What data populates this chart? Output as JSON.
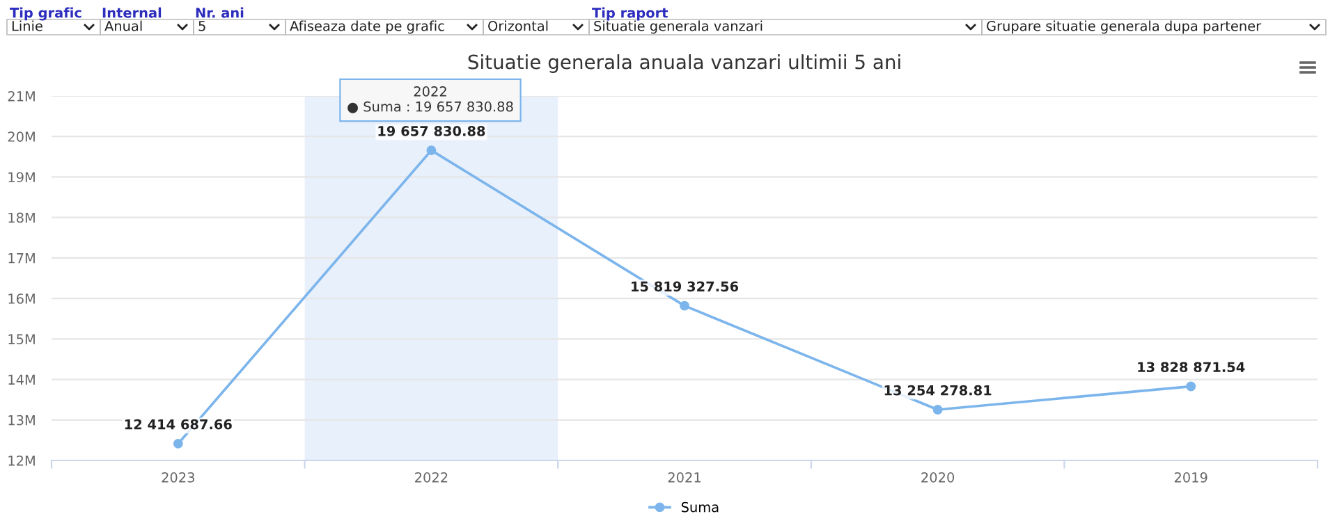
{
  "chart_data": {
    "type": "line",
    "title": "Situatie generala anuala vanzari ultimii 5 ani",
    "categories": [
      "2023",
      "2022",
      "2021",
      "2020",
      "2019"
    ],
    "series": [
      {
        "name": "Suma",
        "color": "#7cb5ec",
        "values": [
          12414687.66,
          19657830.88,
          15819327.56,
          13254278.81,
          13828871.54
        ],
        "value_labels": [
          "12 414 687.66",
          "19 657 830.88",
          "15 819 327.56",
          "13 254 278.81",
          "13 828 871.54"
        ]
      }
    ],
    "ylim": [
      12000000,
      21000000
    ],
    "yticks": [
      {
        "value": 12000000,
        "label": "12M"
      },
      {
        "value": 13000000,
        "label": "13M"
      },
      {
        "value": 14000000,
        "label": "14M"
      },
      {
        "value": 15000000,
        "label": "15M"
      },
      {
        "value": 16000000,
        "label": "16M"
      },
      {
        "value": 17000000,
        "label": "17M"
      },
      {
        "value": 18000000,
        "label": "18M"
      },
      {
        "value": 19000000,
        "label": "19M"
      },
      {
        "value": 20000000,
        "label": "20M"
      },
      {
        "value": 21000000,
        "label": "21M"
      }
    ],
    "bands": [
      {
        "axis": "x",
        "from": "2022",
        "to": "2022",
        "color": "#e8f0fc"
      }
    ],
    "annotations": [
      "Tip grafic",
      "Internal",
      "Nr. ani",
      "Tip raport",
      "Linie",
      "Anual",
      "5",
      "Afiseaza date pe grafic",
      "Orizontal",
      "Situatie generala vanzari",
      "Grupare situatie generala dupa partener",
      "2022\n● Suma : 19 657 830.88"
    ],
    "grid": "y",
    "legend": "bottom",
    "marker": "circle",
    "line_style": "solid"
  }
}
